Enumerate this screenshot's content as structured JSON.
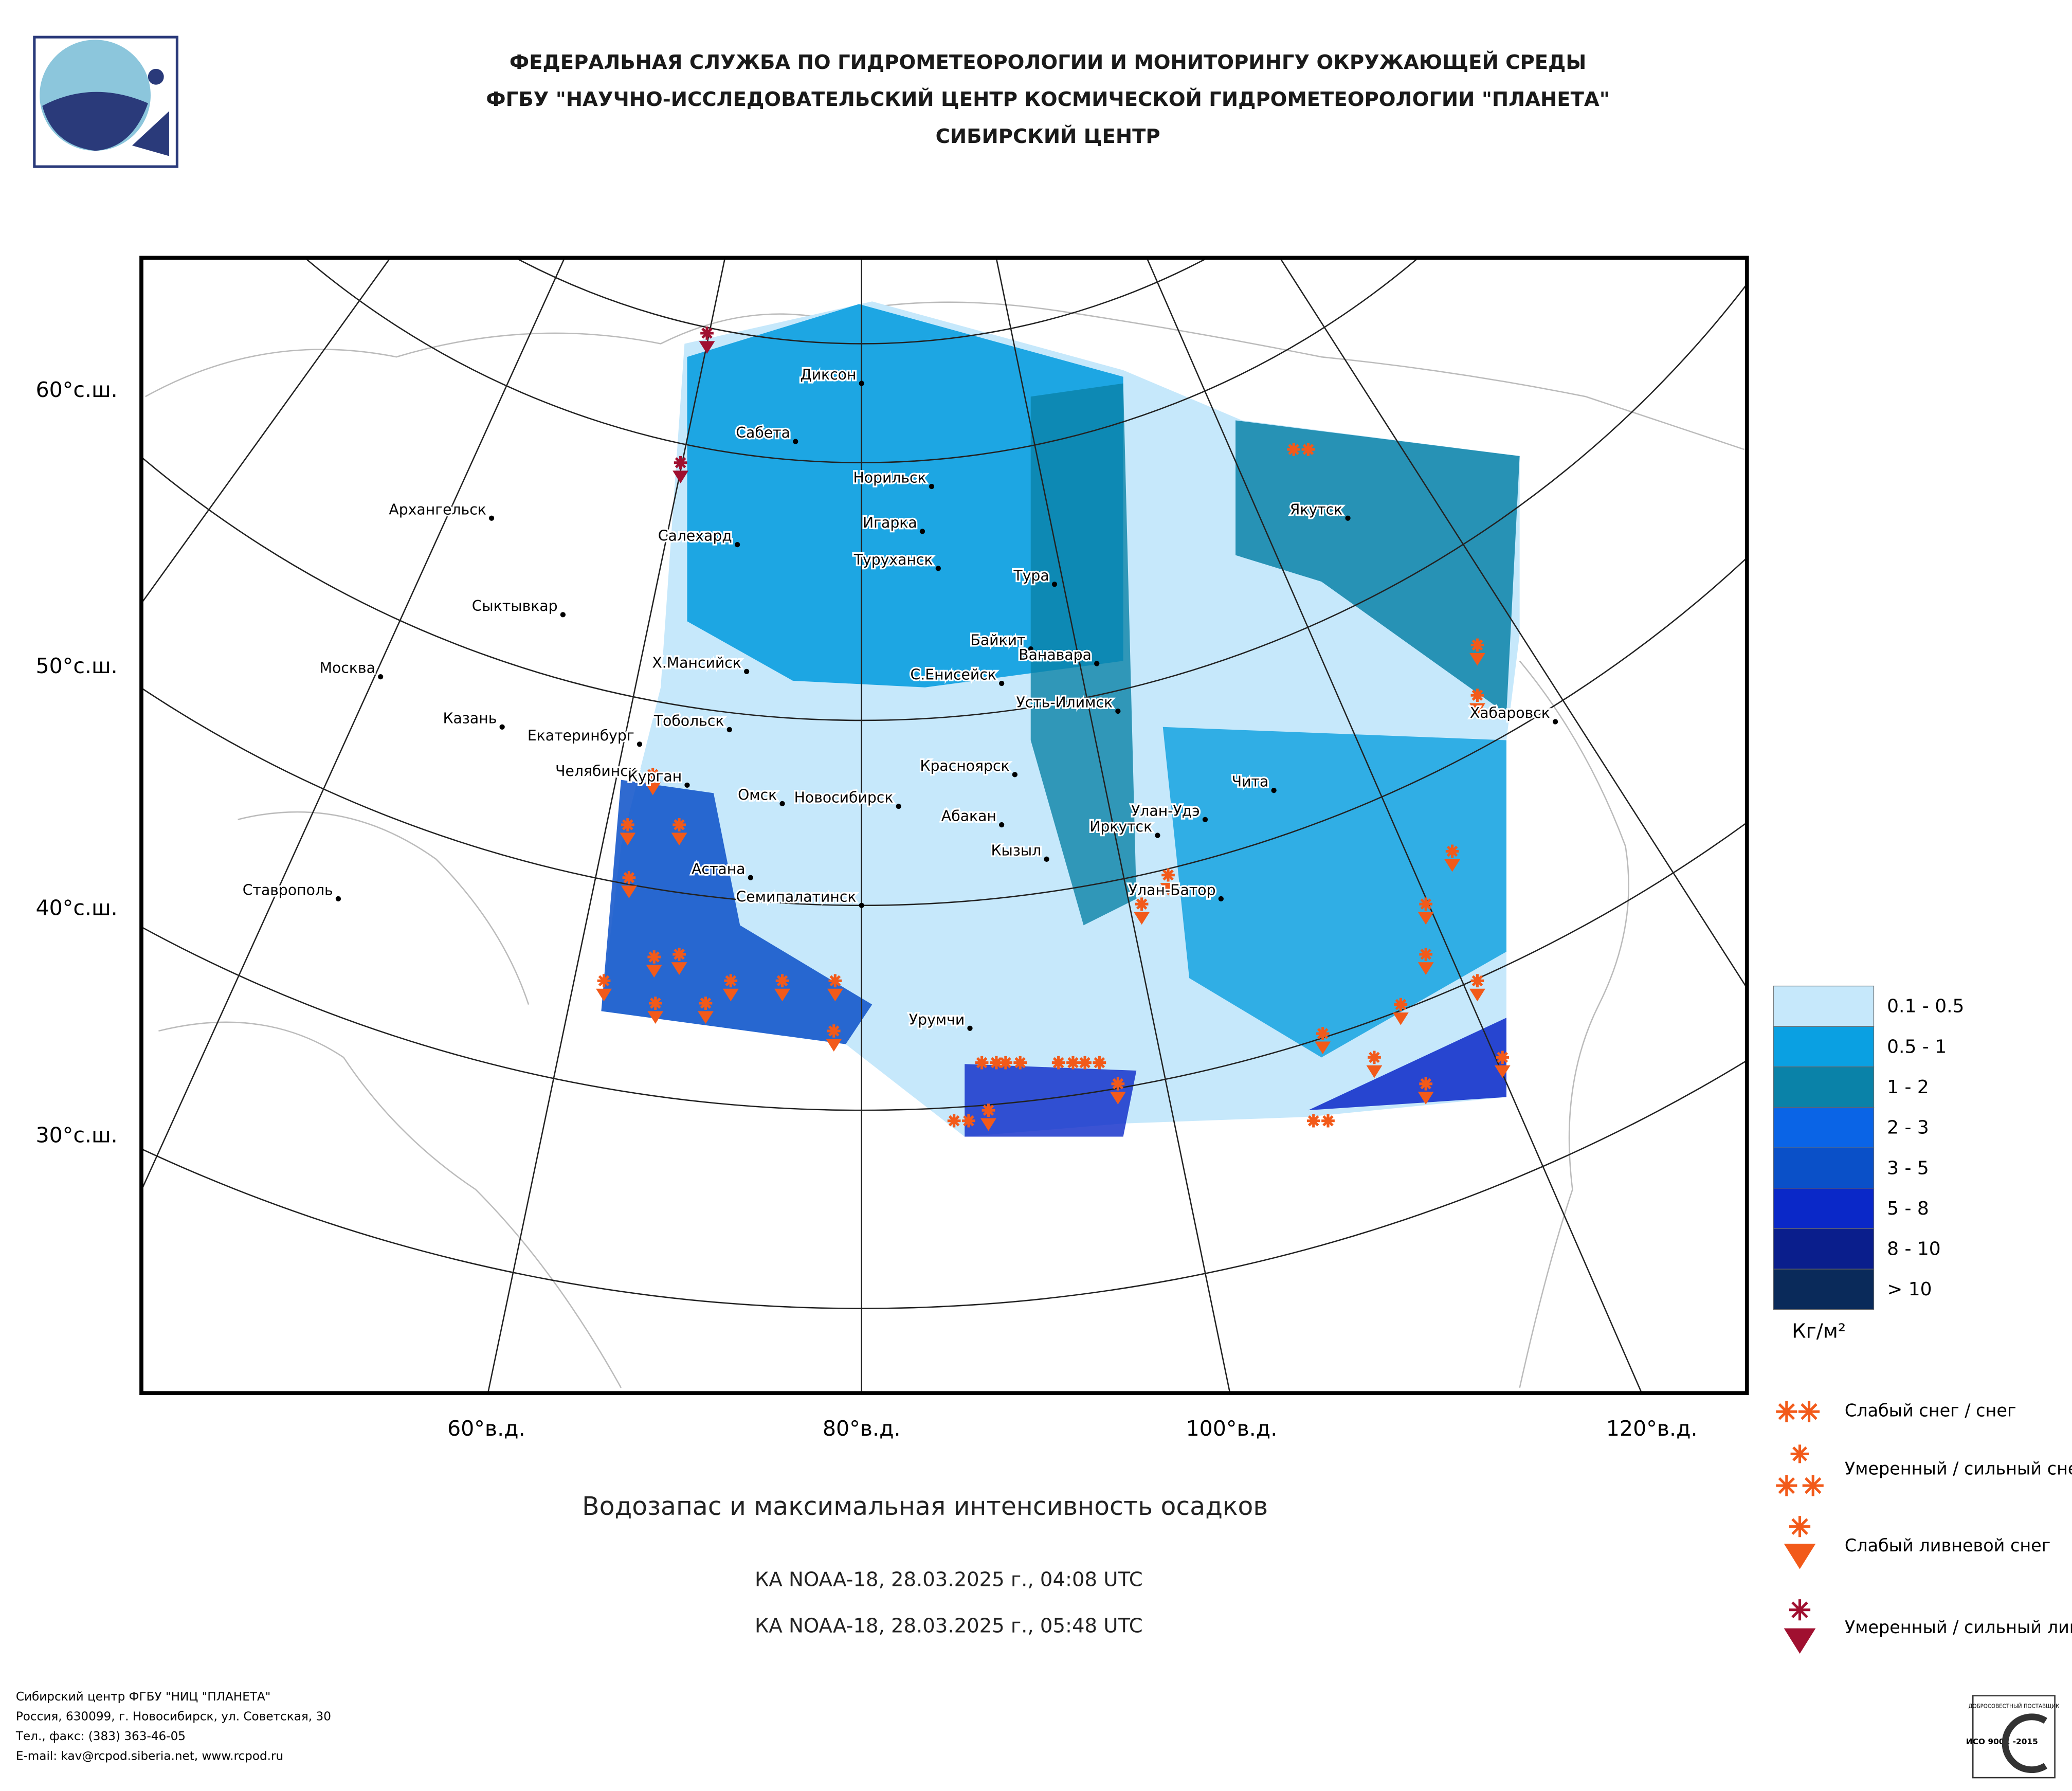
{
  "header": {
    "agency": "ФЕДЕРАЛЬНАЯ СЛУЖБА ПО ГИДРОМЕТЕОРОЛОГИИ И МОНИТОРИНГУ ОКРУЖАЮЩЕЙ СРЕДЫ",
    "center": "ФГБУ \"НАУЧНО-ИССЛЕДОВАТЕЛЬСКИЙ ЦЕНТР КОСМИЧЕСКОЙ ГИДРОМЕТЕОРОЛОГИИ \"ПЛАНЕТА\"",
    "branch": "СИБИРСКИЙ ЦЕНТР"
  },
  "map": {
    "lat_labels": [
      "60°с.ш.",
      "50°с.ш.",
      "40°с.ш.",
      "30°с.ш."
    ],
    "lon_labels": [
      "60°в.д.",
      "80°в.д.",
      "100°в.д.",
      "120°в.д."
    ],
    "cities": [
      "Диксон",
      "Сабета",
      "Норильск",
      "Игарка",
      "Туруханск",
      "Салехард",
      "Архангельск",
      "Сыктывкар",
      "Тура",
      "Байкит",
      "Ванавара",
      "С.Енисейск",
      "Усть-Илимск",
      "Якутск",
      "Хабаровск",
      "Х.Мансийск",
      "Москва",
      "Казань",
      "Екатеринбург",
      "Тобольск",
      "Челябинск",
      "Курган",
      "Омск",
      "Новосибирск",
      "Красноярск",
      "Абакан",
      "Кызыл",
      "Иркутск",
      "Улан-Удэ",
      "Чита",
      "Улан-Батор",
      "Астана",
      "Семипалатинск",
      "Ставрополь",
      "Урумчи"
    ]
  },
  "legend": {
    "bins": [
      "0.1 - 0.5",
      "0.5 - 1",
      "1 - 2",
      "2 - 3",
      "3 - 5",
      "5 - 8",
      "8 - 10",
      "> 10"
    ],
    "unit": "Кг/м²",
    "symbols": [
      "Слабый снег / снег",
      "Умеренный / сильный снег",
      "Слабый ливневой снег",
      "Умеренный / сильный ливневой снег"
    ]
  },
  "title": "Водозапас и максимальная интенсивность осадков",
  "passes": [
    "КА NOAA-18, 28.03.2025 г., 04:08 UTC",
    "КА NOAA-18, 28.03.2025 г., 05:48 UTC"
  ],
  "footer": [
    "Сибирский центр ФГБУ \"НИЦ \"ПЛАНЕТА\"",
    "Россия, 630099, г. Новосибирск, ул. Советская, 30",
    "Тел., факс: (383) 363-46-05",
    "E-mail: kav@rcpod.siberia.net, www.rcpod.ru"
  ],
  "badge": {
    "top": "ДОБРОСОВЕСТНЫЙ ПОСТАВЩИК",
    "iso": "ИСО 9001 -2015"
  }
}
